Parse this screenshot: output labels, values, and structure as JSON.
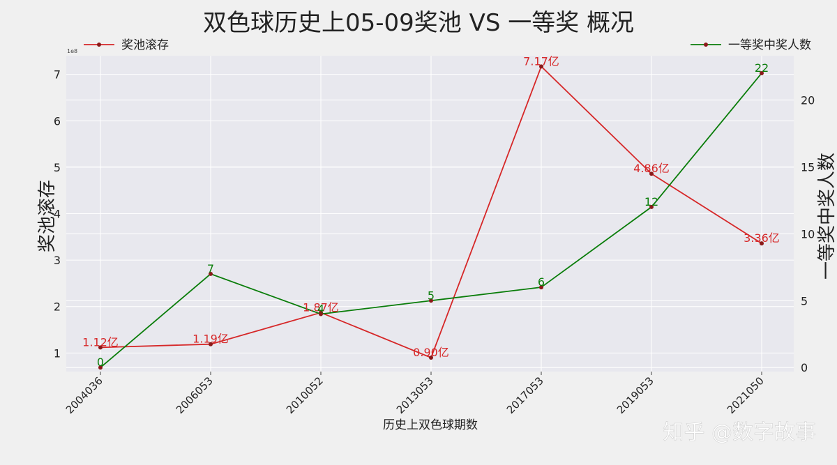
{
  "chart_data": {
    "type": "line",
    "title": "双色球历史上05-09奖池 VS 一等奖 概况",
    "xlabel": "历史上双色球期数",
    "categories": [
      "2004036",
      "2006053",
      "2010052",
      "2013053",
      "2017053",
      "2019053",
      "2021050"
    ],
    "left_axis": {
      "label": "奖池滚存",
      "offset_text": "1e8",
      "ticks": [
        1,
        2,
        3,
        4,
        5,
        6,
        7
      ],
      "ylim": [
        0.6,
        7.4
      ]
    },
    "right_axis": {
      "label": "一等奖中奖人数",
      "ticks": [
        0,
        5,
        10,
        15,
        20
      ],
      "ylim": [
        -0.3,
        23.3
      ]
    },
    "series": [
      {
        "name": "奖池滚存",
        "axis": "left",
        "color": "#d62728",
        "values": [
          1.12,
          1.19,
          1.87,
          0.9,
          7.17,
          4.86,
          3.36
        ],
        "labels": [
          "1.12亿",
          "1.19亿",
          "1.87亿",
          "0.90亿",
          "7.17亿",
          "4.86亿",
          "3.36亿"
        ]
      },
      {
        "name": "一等奖中奖人数",
        "axis": "right",
        "color": "#0a7d0a",
        "values": [
          0,
          7,
          4,
          5,
          6,
          12,
          22
        ],
        "labels": [
          "0",
          "7",
          "4",
          "5",
          "6",
          "12",
          "22"
        ]
      }
    ],
    "legend": {
      "left_item": "奖池滚存",
      "right_item": "一等奖中奖人数",
      "placement": "top-left and top-right"
    },
    "grid": true,
    "watermark": "知乎 @数字故事"
  }
}
